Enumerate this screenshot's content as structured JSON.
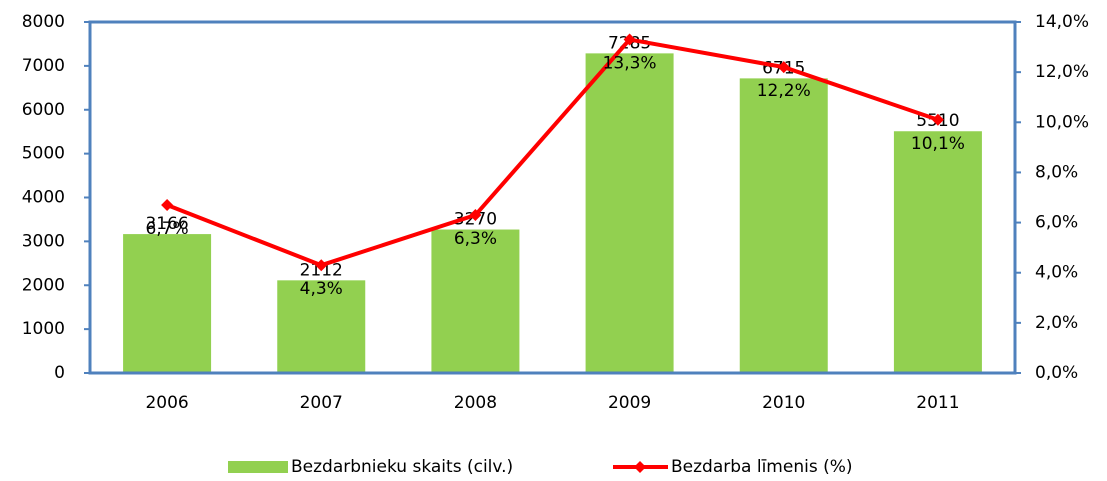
{
  "chart_data": {
    "type": "bar_line",
    "categories": [
      "2006",
      "2007",
      "2008",
      "2009",
      "2010",
      "2011"
    ],
    "series": [
      {
        "name": "Bezdarbnieku skaits (cilv.)",
        "color": "#92d050",
        "type": "bar",
        "values": [
          3166,
          2112,
          3270,
          7285,
          6715,
          5510
        ]
      },
      {
        "name": "Bezdarba līmenis (%)",
        "color": "#ff0000",
        "type": "line",
        "axis": "y2",
        "values": [
          6.7,
          4.3,
          6.3,
          13.3,
          12.2,
          10.1
        ],
        "value_labels": [
          "6,7%",
          "4,3%",
          "6,3%",
          "13,3%",
          "12,2%",
          "10,1%"
        ]
      }
    ],
    "ylim": [
      0,
      8000
    ],
    "yticks": [
      0,
      1000,
      2000,
      3000,
      4000,
      5000,
      6000,
      7000,
      8000
    ],
    "y2lim": [
      0,
      14
    ],
    "y2ticks": [
      {
        "value": 0,
        "label": "0,0%"
      },
      {
        "value": 2,
        "label": "2,0%"
      },
      {
        "value": 4,
        "label": "4,0%"
      },
      {
        "value": 6,
        "label": "6,0%"
      },
      {
        "value": 8,
        "label": "8,0%"
      },
      {
        "value": 10,
        "label": "10,0%"
      },
      {
        "value": 12,
        "label": "12,0%"
      },
      {
        "value": 14,
        "label": "14,0%"
      }
    ],
    "legend": "bottom"
  }
}
